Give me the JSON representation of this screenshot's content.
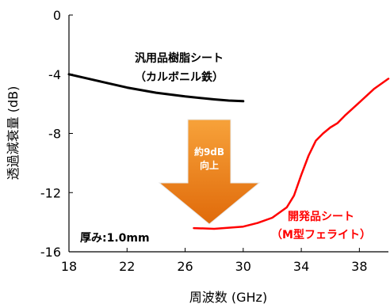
{
  "chart_data": {
    "type": "line",
    "title": "",
    "xlabel": "周波数 (GHz)",
    "ylabel": "透過減衰量 (dB)",
    "xlim": [
      18,
      40
    ],
    "ylim": [
      -16,
      0
    ],
    "x_ticks": [
      "18",
      "22",
      "26",
      "30",
      "34",
      "38"
    ],
    "y_ticks": [
      "0",
      "-4",
      "-8",
      "-12",
      "-16"
    ],
    "grid": false,
    "legend": "none",
    "series": [
      {
        "name": "汎用品樹脂シート（カルボニル鉄）",
        "color": "#000000",
        "x": [
          18,
          20,
          22,
          24,
          26,
          28,
          29,
          30
        ],
        "y": [
          -4.0,
          -4.45,
          -4.9,
          -5.25,
          -5.5,
          -5.7,
          -5.78,
          -5.82
        ]
      },
      {
        "name": "開発品シート（M型フェライト）",
        "color": "#ff0000",
        "x": [
          26.6,
          28,
          30,
          31,
          32,
          33,
          33.5,
          34,
          34.5,
          35,
          35.5,
          36,
          36.5,
          37,
          38,
          39,
          40
        ],
        "y": [
          -14.4,
          -14.45,
          -14.3,
          -14.05,
          -13.7,
          -13.0,
          -12.2,
          -10.8,
          -9.5,
          -8.5,
          -8.0,
          -7.6,
          -7.3,
          -6.8,
          -5.9,
          -5.0,
          -4.3
        ]
      }
    ]
  },
  "annotations": {
    "black_label_line1": "汎用品樹脂シート",
    "black_label_line2": "（カルボニル鉄）",
    "red_label_line1": "開発品シート",
    "red_label_line2": "（M型フェライト）",
    "arrow_line1": "約9dB",
    "arrow_line2": "向上",
    "thickness": "厚み:1.0mm"
  },
  "colors": {
    "arrow_top": "#f7a23a",
    "arrow_bottom": "#e06a0a",
    "red": "#ff0000",
    "black": "#000000"
  }
}
